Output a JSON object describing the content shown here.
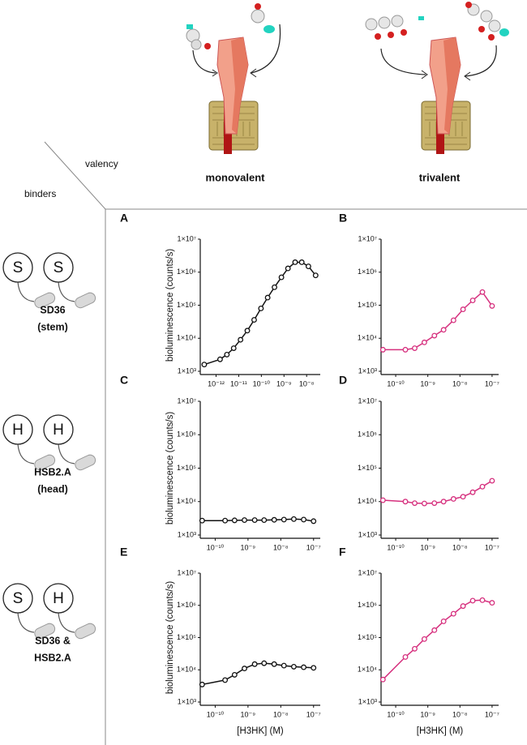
{
  "headers": {
    "valency": "valency",
    "binders": "binders",
    "columns": [
      "monovalent",
      "trivalent"
    ]
  },
  "rows": [
    {
      "icons": [
        "S",
        "S"
      ],
      "name": [
        "SD36",
        "(stem)"
      ]
    },
    {
      "icons": [
        "H",
        "H"
      ],
      "name": [
        "HSB2.A",
        "(head)"
      ]
    },
    {
      "icons": [
        "S",
        "H"
      ],
      "name": [
        "SD36 &",
        "HSB2.A"
      ]
    }
  ],
  "chart_data": [
    {
      "type": "line",
      "title": "A",
      "ylabel": "bioluminescence (counts/s)",
      "xscale": "log",
      "yscale": "log",
      "color": "#111111",
      "x": [
        3e-13,
        1.5e-12,
        3e-12,
        6e-12,
        1.2e-11,
        2.4e-11,
        4.8e-11,
        9.6e-11,
        1.9e-10,
        3.8e-10,
        7.7e-10,
        1.5e-09,
        3.1e-09,
        6.1e-09,
        1.2e-08,
        2.5e-08
      ],
      "values": [
        1600,
        2300,
        3200,
        5000,
        9000,
        17000,
        36000,
        80000,
        170000,
        350000,
        700000,
        1300000,
        2000000,
        2000000,
        1500000,
        800000
      ],
      "xlim": [
        2e-13,
        4e-08
      ],
      "xticks": [
        {
          "value": 1e-12,
          "label": "10⁻¹²"
        },
        {
          "value": 1e-11,
          "label": "10⁻¹¹"
        },
        {
          "value": 1e-10,
          "label": "10⁻¹⁰"
        },
        {
          "value": 1e-09,
          "label": "10⁻⁹"
        },
        {
          "value": 1e-08,
          "label": "10⁻⁸"
        }
      ],
      "ylim": [
        1000,
        10000000
      ],
      "yticks": [
        {
          "value": 1000,
          "label": "1×10³"
        },
        {
          "value": 10000,
          "label": "1×10⁴"
        },
        {
          "value": 100000,
          "label": "1×10⁵"
        },
        {
          "value": 1000000,
          "label": "1×10⁶"
        },
        {
          "value": 10000000,
          "label": "1×10⁷"
        }
      ]
    },
    {
      "type": "line",
      "title": "B",
      "xscale": "log",
      "yscale": "log",
      "color": "#d6307e",
      "x": [
        4e-11,
        2e-10,
        3.9e-10,
        7.8e-10,
        1.6e-09,
        3.1e-09,
        6.3e-09,
        1.25e-08,
        2.5e-08,
        5e-08,
        1e-07
      ],
      "values": [
        4500,
        4500,
        5000,
        7500,
        12000,
        18000,
        35000,
        75000,
        140000,
        250000,
        95000
      ],
      "xlim": [
        3.5e-11,
        1.6e-07
      ],
      "xticks": [
        {
          "value": 1e-10,
          "label": "10⁻¹⁰"
        },
        {
          "value": 1e-09,
          "label": "10⁻⁹"
        },
        {
          "value": 1e-08,
          "label": "10⁻⁸"
        },
        {
          "value": 1e-07,
          "label": "10⁻⁷"
        }
      ],
      "ylim": [
        1000,
        10000000
      ],
      "yticks": [
        {
          "value": 1000,
          "label": "1×10³"
        },
        {
          "value": 10000,
          "label": "1×10⁴"
        },
        {
          "value": 100000,
          "label": "1×10⁵"
        },
        {
          "value": 1000000,
          "label": "1×10⁶"
        },
        {
          "value": 10000000,
          "label": "1×10⁷"
        }
      ]
    },
    {
      "type": "line",
      "title": "C",
      "ylabel": "bioluminescence (counts/s)",
      "xscale": "log",
      "yscale": "log",
      "color": "#111111",
      "x": [
        4e-11,
        2e-10,
        3.9e-10,
        7.8e-10,
        1.6e-09,
        3.1e-09,
        6.3e-09,
        1.25e-08,
        2.5e-08,
        5e-08,
        1e-07
      ],
      "values": [
        2700,
        2700,
        2750,
        2800,
        2800,
        2800,
        2850,
        2900,
        3000,
        2900,
        2600
      ],
      "xlim": [
        3.5e-11,
        1.6e-07
      ],
      "xticks": [
        {
          "value": 1e-10,
          "label": "10⁻¹⁰"
        },
        {
          "value": 1e-09,
          "label": "10⁻⁹"
        },
        {
          "value": 1e-08,
          "label": "10⁻⁸"
        },
        {
          "value": 1e-07,
          "label": "10⁻⁷"
        }
      ],
      "ylim": [
        1000,
        10000000
      ],
      "yticks": [
        {
          "value": 1000,
          "label": "1×10³"
        },
        {
          "value": 10000,
          "label": "1×10⁴"
        },
        {
          "value": 100000,
          "label": "1×10⁵"
        },
        {
          "value": 1000000,
          "label": "1×10⁶"
        },
        {
          "value": 10000000,
          "label": "1×10⁷"
        }
      ]
    },
    {
      "type": "line",
      "title": "D",
      "xscale": "log",
      "yscale": "log",
      "color": "#d6307e",
      "x": [
        4e-11,
        2e-10,
        3.9e-10,
        7.8e-10,
        1.6e-09,
        3.1e-09,
        6.3e-09,
        1.25e-08,
        2.5e-08,
        5e-08,
        1e-07
      ],
      "values": [
        11000,
        10000,
        9000,
        8800,
        9000,
        10000,
        12000,
        14000,
        19000,
        28000,
        42000
      ],
      "xlim": [
        3.5e-11,
        1.6e-07
      ],
      "xticks": [
        {
          "value": 1e-10,
          "label": "10⁻¹⁰"
        },
        {
          "value": 1e-09,
          "label": "10⁻⁹"
        },
        {
          "value": 1e-08,
          "label": "10⁻⁸"
        },
        {
          "value": 1e-07,
          "label": "10⁻⁷"
        }
      ],
      "ylim": [
        1000,
        10000000
      ],
      "yticks": [
        {
          "value": 1000,
          "label": "1×10³"
        },
        {
          "value": 10000,
          "label": "1×10⁴"
        },
        {
          "value": 100000,
          "label": "1×10⁵"
        },
        {
          "value": 1000000,
          "label": "1×10⁶"
        },
        {
          "value": 10000000,
          "label": "1×10⁷"
        }
      ]
    },
    {
      "type": "line",
      "title": "E",
      "ylabel": "bioluminescence (counts/s)",
      "xlabel": "[H3HK] (M)",
      "xscale": "log",
      "yscale": "log",
      "color": "#111111",
      "x": [
        4e-11,
        2e-10,
        3.9e-10,
        7.8e-10,
        1.6e-09,
        3.1e-09,
        6.3e-09,
        1.25e-08,
        2.5e-08,
        5e-08,
        1e-07
      ],
      "values": [
        3500,
        4800,
        7000,
        11000,
        15000,
        16000,
        15000,
        13500,
        12500,
        12000,
        11500
      ],
      "xlim": [
        3.5e-11,
        1.6e-07
      ],
      "xticks": [
        {
          "value": 1e-10,
          "label": "10⁻¹⁰"
        },
        {
          "value": 1e-09,
          "label": "10⁻⁹"
        },
        {
          "value": 1e-08,
          "label": "10⁻⁸"
        },
        {
          "value": 1e-07,
          "label": "10⁻⁷"
        }
      ],
      "ylim": [
        1000,
        10000000
      ],
      "yticks": [
        {
          "value": 1000,
          "label": "1×10³"
        },
        {
          "value": 10000,
          "label": "1×10⁴"
        },
        {
          "value": 100000,
          "label": "1×10⁵"
        },
        {
          "value": 1000000,
          "label": "1×10⁶"
        },
        {
          "value": 10000000,
          "label": "1×10⁷"
        }
      ]
    },
    {
      "type": "line",
      "title": "F",
      "xlabel": "[H3HK] (M)",
      "xscale": "log",
      "yscale": "log",
      "color": "#d6307e",
      "x": [
        4e-11,
        2e-10,
        3.9e-10,
        7.8e-10,
        1.6e-09,
        3.1e-09,
        6.3e-09,
        1.25e-08,
        2.5e-08,
        5e-08,
        1e-07
      ],
      "values": [
        5000,
        25000,
        45000,
        90000,
        170000,
        320000,
        550000,
        950000,
        1400000,
        1450000,
        1200000
      ],
      "xlim": [
        3.5e-11,
        1.6e-07
      ],
      "xticks": [
        {
          "value": 1e-10,
          "label": "10⁻¹⁰"
        },
        {
          "value": 1e-09,
          "label": "10⁻⁹"
        },
        {
          "value": 1e-08,
          "label": "10⁻⁸"
        },
        {
          "value": 1e-07,
          "label": "10⁻⁷"
        }
      ],
      "ylim": [
        1000,
        10000000
      ],
      "yticks": [
        {
          "value": 1000,
          "label": "1×10³"
        },
        {
          "value": 10000,
          "label": "1×10⁴"
        },
        {
          "value": 100000,
          "label": "1×10⁵"
        },
        {
          "value": 1000000,
          "label": "1×10⁶"
        },
        {
          "value": 10000000,
          "label": "1×10⁷"
        }
      ]
    }
  ]
}
